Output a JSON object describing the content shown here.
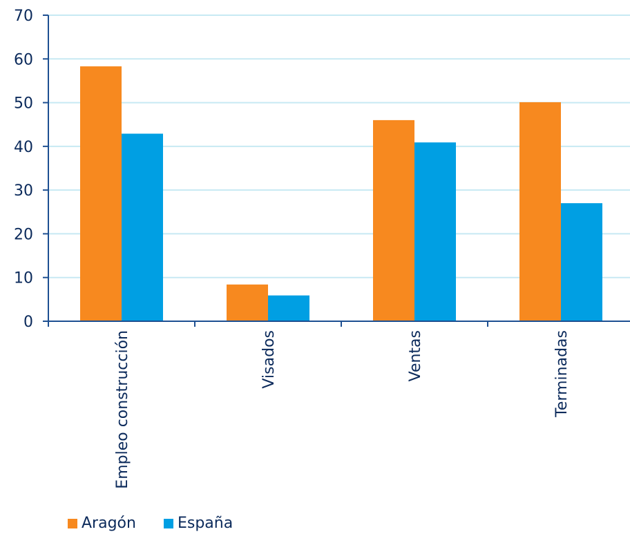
{
  "chart_data": {
    "type": "bar",
    "categories": [
      "Empleo construcción",
      "Visados",
      "Ventas",
      "Terminadas"
    ],
    "series": [
      {
        "name": "Aragón",
        "color": "#f7891f",
        "values": [
          58.3,
          8.4,
          46.0,
          50.1
        ]
      },
      {
        "name": "España",
        "color": "#009fe3",
        "values": [
          42.9,
          5.9,
          40.9,
          27.0
        ]
      }
    ],
    "ylim": [
      0,
      70
    ],
    "yticks": [
      0,
      10,
      20,
      30,
      40,
      50,
      60,
      70
    ],
    "grid": true,
    "legend_position": "bottom-left",
    "colors": {
      "axis": "#1d4f91",
      "grid": "#c7e9f3",
      "text": "#0b2a5b"
    }
  }
}
